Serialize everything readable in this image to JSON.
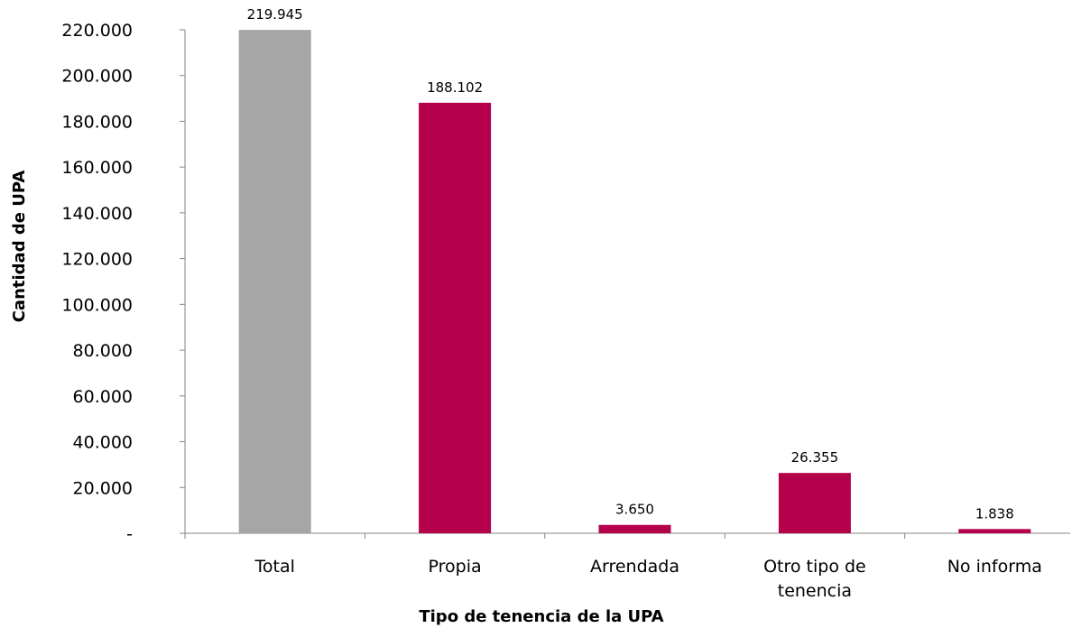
{
  "chart_data": {
    "type": "bar",
    "categories": [
      [
        "Total"
      ],
      [
        "Propia"
      ],
      [
        "Arrendada"
      ],
      [
        "Otro tipo de",
        "tenencia"
      ],
      [
        "No informa"
      ]
    ],
    "values": [
      219945,
      188102,
      3650,
      26355,
      1838
    ],
    "value_labels": [
      "219.945",
      "188.102",
      "3.650",
      "26.355",
      "1.838"
    ],
    "bar_colors": [
      "#a6a6a6",
      "#b5004c",
      "#b5004c",
      "#b5004c",
      "#b5004c"
    ],
    "xlabel": "Tipo de tenencia de la UPA",
    "ylabel": "Cantidad de UPA",
    "ylim": [
      0,
      220000
    ],
    "yticks": [
      0,
      20000,
      40000,
      60000,
      80000,
      100000,
      120000,
      140000,
      160000,
      180000,
      200000,
      220000
    ],
    "ytick_labels": [
      "-",
      "20.000",
      "40.000",
      "60.000",
      "80.000",
      "100.000",
      "120.000",
      "140.000",
      "160.000",
      "180.000",
      "200.000",
      "220.000"
    ],
    "grid": false,
    "legend": "none"
  }
}
